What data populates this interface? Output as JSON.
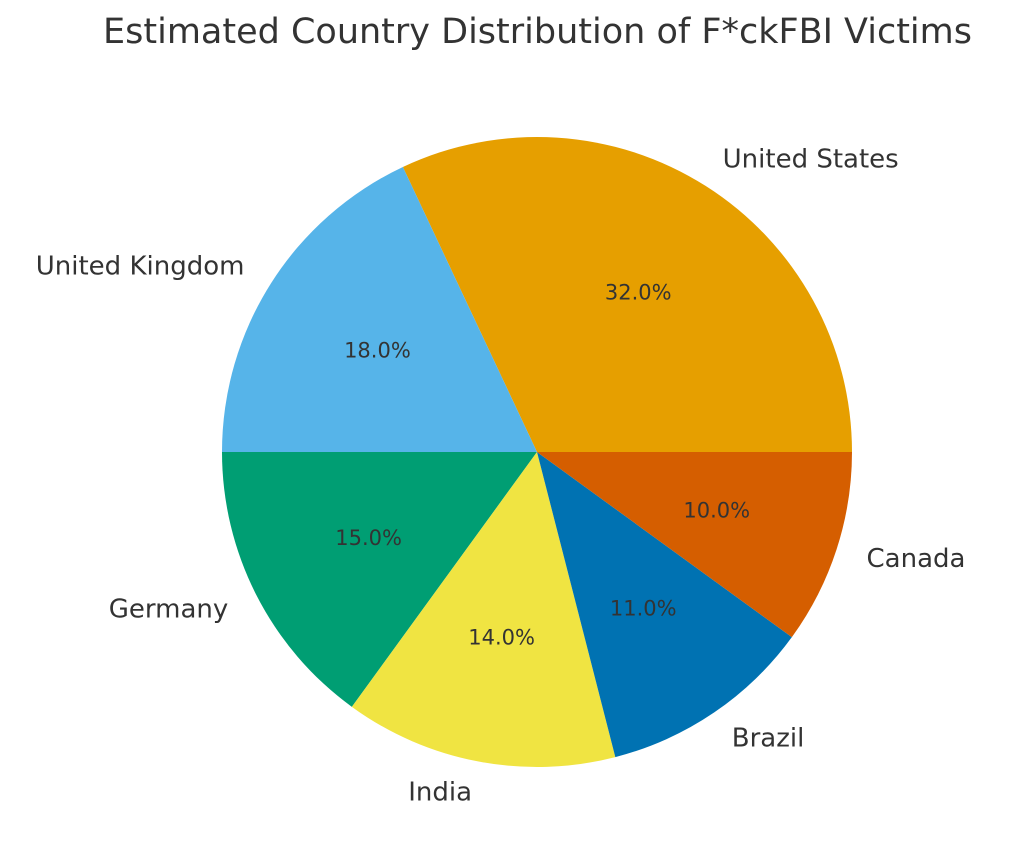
{
  "chart_data": {
    "type": "pie",
    "title": "Estimated Country Distribution of F*ckFBI Victims",
    "start_angle": "east",
    "direction": "counterclockwise",
    "slices": [
      {
        "label": "United States",
        "value": 32.0,
        "pct_label": "32.0%",
        "color": "#E69F00"
      },
      {
        "label": "United Kingdom",
        "value": 18.0,
        "pct_label": "18.0%",
        "color": "#56B4E9"
      },
      {
        "label": "Germany",
        "value": 15.0,
        "pct_label": "15.0%",
        "color": "#009E73"
      },
      {
        "label": "India",
        "value": 14.0,
        "pct_label": "14.0%",
        "color": "#F0E442"
      },
      {
        "label": "Brazil",
        "value": 11.0,
        "pct_label": "11.0%",
        "color": "#0072B2"
      },
      {
        "label": "Canada",
        "value": 10.0,
        "pct_label": "10.0%",
        "color": "#D55E00"
      }
    ]
  }
}
